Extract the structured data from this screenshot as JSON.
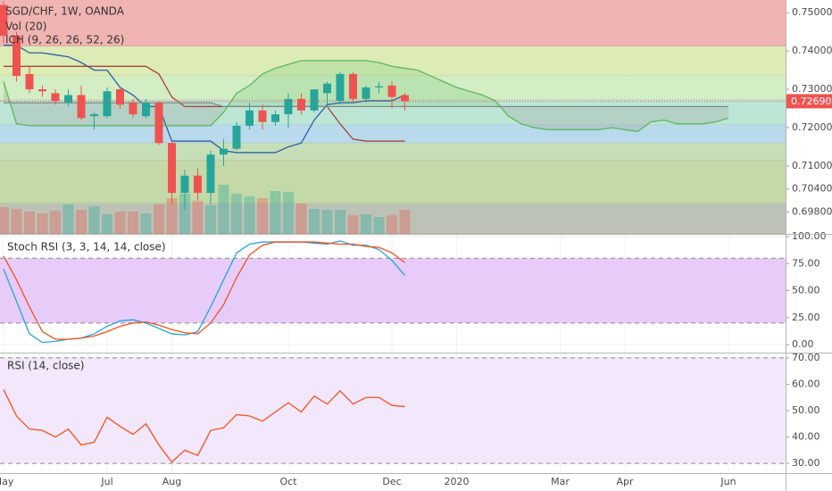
{
  "time_axis": {
    "labels": [
      "May",
      null,
      null,
      null,
      null,
      null,
      null,
      null,
      "Jul",
      null,
      null,
      null,
      null,
      "Aug",
      null,
      null,
      null,
      null,
      null,
      null,
      null,
      null,
      "Oct",
      null,
      null,
      null,
      null,
      null,
      null,
      null,
      "Dec",
      null,
      null,
      null,
      null,
      "2020",
      null,
      null,
      null,
      null,
      null,
      null,
      null,
      "Mar",
      null,
      null,
      null,
      null,
      "Apr",
      null,
      null,
      null,
      null,
      null,
      null,
      null,
      "Jun",
      null,
      null,
      null,
      null
    ]
  },
  "chart_data": [
    {
      "type": "candlestick",
      "title": "SGD/CHF, 1W, OANDA",
      "up_color": "#26a69a",
      "down_color": "#ef5350",
      "open": [
        0.752,
        0.744,
        0.734,
        0.73,
        0.729,
        0.7265,
        0.7285,
        0.723,
        0.723,
        0.73,
        0.7265,
        0.723,
        0.7265,
        0.716,
        0.703,
        0.7075,
        0.703,
        0.713,
        0.7145,
        0.7205,
        0.7245,
        0.7215,
        0.7235,
        0.7275,
        0.7245,
        0.729,
        0.727,
        0.734,
        0.7275,
        0.7305,
        0.731,
        0.7285
      ],
      "high": [
        0.753,
        0.745,
        0.736,
        0.731,
        0.73,
        0.73,
        0.731,
        0.724,
        0.7305,
        0.7305,
        0.7275,
        0.7275,
        0.727,
        0.7165,
        0.709,
        0.7095,
        0.714,
        0.717,
        0.7215,
        0.7265,
        0.726,
        0.7245,
        0.729,
        0.729,
        0.73,
        0.732,
        0.7345,
        0.7345,
        0.731,
        0.732,
        0.732,
        0.729
      ],
      "low": [
        0.742,
        0.732,
        0.729,
        0.728,
        0.726,
        0.7255,
        0.722,
        0.7195,
        0.7225,
        0.725,
        0.7225,
        0.7225,
        0.7155,
        0.7,
        0.6985,
        0.701,
        0.7,
        0.71,
        0.714,
        0.7195,
        0.7195,
        0.7205,
        0.72,
        0.7235,
        0.724,
        0.726,
        0.726,
        0.7265,
        0.7265,
        0.729,
        0.725,
        0.7245
      ],
      "close": [
        0.744,
        0.7335,
        0.73,
        0.7295,
        0.727,
        0.7285,
        0.7225,
        0.7235,
        0.7295,
        0.726,
        0.7235,
        0.7265,
        0.716,
        0.703,
        0.7075,
        0.703,
        0.713,
        0.7145,
        0.7205,
        0.7245,
        0.7215,
        0.7235,
        0.7275,
        0.7245,
        0.73,
        0.7315,
        0.734,
        0.7275,
        0.7305,
        0.7308,
        0.728,
        0.7269
      ],
      "volume": {
        "label": "Vol (20)",
        "values": [
          30,
          28,
          25,
          23,
          26,
          33,
          27,
          31,
          22,
          25,
          25,
          23,
          33,
          40,
          45,
          37,
          32,
          55,
          45,
          42,
          40,
          48,
          47,
          34,
          28,
          27,
          27,
          21,
          22,
          19,
          21,
          27
        ]
      },
      "ichimoku": {
        "label": "ICH (9, 26, 26, 52, 26)",
        "series": [
          {
            "color": "#2f5ea8",
            "values": [
              0.7415,
              0.7415,
              0.7395,
              0.7395,
              0.739,
              0.7385,
              0.737,
              0.735,
              0.735,
              0.7305,
              0.7285,
              0.7255,
              0.7255,
              0.7165,
              0.7165,
              0.7165,
              0.7165,
              0.714,
              0.7135,
              0.7135,
              0.7135,
              0.7135,
              0.715,
              0.716,
              0.722,
              0.726,
              0.7265,
              0.7265,
              0.727,
              0.727,
              0.727,
              0.7285
            ]
          },
          {
            "color": "#a2473d",
            "values": [
              0.736,
              0.736,
              0.736,
              0.736,
              0.736,
              0.736,
              0.736,
              0.736,
              0.736,
              0.736,
              0.736,
              0.736,
              0.734,
              0.728,
              0.7255,
              0.7255,
              0.7255,
              0.7255,
              0.7255,
              0.7255,
              0.7255,
              0.7255,
              0.7255,
              0.7255,
              0.7255,
              0.7255,
              0.721,
              0.717,
              0.7165,
              0.7165,
              0.7165,
              0.7165
            ]
          },
          {
            "color": "#5cb85c",
            "values": [
              0.732,
              0.721,
              0.7205,
              0.7205,
              0.7205,
              0.7205,
              0.7205,
              0.7205,
              0.7205,
              0.7205,
              0.7205,
              0.7205,
              0.7205,
              0.7205,
              0.7205,
              0.7205,
              0.7205,
              0.724,
              0.729,
              0.731,
              0.734,
              0.7355,
              0.7365,
              0.7375,
              0.7375,
              0.7375,
              0.7375,
              0.7375,
              0.7375,
              0.737,
              0.736,
              0.7355,
              0.735,
              0.7335,
              0.732,
              0.7305,
              0.7295,
              0.7285,
              0.727,
              0.723,
              0.721,
              0.72,
              0.7195,
              0.7195,
              0.7195,
              0.7195,
              0.7195,
              0.72,
              0.7195,
              0.719,
              0.7215,
              0.722,
              0.721,
              0.721,
              0.721,
              0.7215,
              0.7225
            ]
          },
          {
            "color": "#7f8c86",
            "values": [
              0.7265,
              0.7265,
              0.7265,
              0.7265,
              0.7265,
              0.7265,
              0.7265,
              0.7265,
              0.7265,
              0.7265,
              0.7265,
              0.7265,
              0.7265,
              0.7265,
              0.7265,
              0.7265,
              0.7265,
              0.7255,
              0.7255,
              0.7255,
              0.7255,
              0.7255,
              0.7255,
              0.7255,
              0.7255,
              0.7255,
              0.7255,
              0.7255,
              0.7255,
              0.7255,
              0.7255,
              0.7255,
              0.7255,
              0.7255,
              0.7255,
              0.7255,
              0.7255,
              0.7255,
              0.7255,
              0.7255,
              0.7255,
              0.7255,
              0.7255,
              0.7255,
              0.7255,
              0.7255,
              0.7255,
              0.7255,
              0.7255,
              0.7255,
              0.7255,
              0.7255,
              0.7255,
              0.7255,
              0.7255,
              0.7255,
              0.7255
            ]
          }
        ]
      },
      "zones": [
        {
          "from": 0.7533,
          "to": 0.7412,
          "color": "#f0b4b2"
        },
        {
          "from": 0.7412,
          "to": 0.7335,
          "color": "#dcecb4"
        },
        {
          "from": 0.7335,
          "to": 0.7272,
          "color": "#d3edc4"
        },
        {
          "from": 0.7272,
          "to": 0.7207,
          "color": "#bde5d6"
        },
        {
          "from": 0.7207,
          "to": 0.716,
          "color": "#b8daec"
        },
        {
          "from": 0.716,
          "to": 0.7114,
          "color": "#c6dfb9"
        },
        {
          "from": 0.7114,
          "to": 0.7002,
          "color": "#c4d8a8"
        },
        {
          "from": 0.7002,
          "to": 0.6923,
          "color": "#bcc3b6"
        }
      ],
      "last_price": 0.7269,
      "last_price_label": "0.72690",
      "last_price_color": "#ef5350",
      "ylim": [
        0.6923,
        0.7533
      ],
      "yticks": [
        {
          "value": 0.75,
          "label": "0.75000"
        },
        {
          "value": 0.74,
          "label": "0.74000"
        },
        {
          "value": 0.73,
          "label": "0.73000"
        },
        {
          "value": 0.72,
          "label": "0.72000"
        },
        {
          "value": 0.71,
          "label": "0.71000"
        },
        {
          "value": 0.704,
          "label": "0.70400"
        },
        {
          "value": 0.698,
          "label": "0.69800"
        }
      ],
      "grid": false
    },
    {
      "type": "line",
      "title": "Stoch RSI (3, 3, 14, 14, close)",
      "ylim": [
        -7.4,
        102.5
      ],
      "yticks": [
        {
          "value": 100,
          "label": "100.00"
        },
        {
          "value": 75,
          "label": "75.00"
        },
        {
          "value": 50,
          "label": "50.00"
        },
        {
          "value": 25,
          "label": "25.00"
        },
        {
          "value": 0,
          "label": "0.00"
        }
      ],
      "band": [
        20,
        80
      ],
      "band_color": "#e7ccfa",
      "series": [
        {
          "color": "#26a6d9",
          "values": [
            70,
            40,
            10,
            2,
            3,
            5,
            6,
            10,
            17,
            22,
            23,
            20,
            15,
            10,
            9,
            12,
            35,
            60,
            85,
            93,
            95,
            95,
            95,
            95,
            94,
            93,
            96,
            92,
            92,
            88,
            78,
            64
          ]
        },
        {
          "color": "#f4511e",
          "values": [
            82,
            60,
            35,
            12,
            5,
            5,
            6,
            8,
            12,
            17,
            20,
            21,
            18,
            14,
            11,
            10,
            20,
            37,
            62,
            83,
            92,
            95,
            95,
            95,
            95,
            94,
            93,
            93,
            91,
            90,
            85,
            76
          ]
        }
      ],
      "grid": true
    },
    {
      "type": "line",
      "title": "RSI (14, close)",
      "ylim": [
        26.3,
        72.0
      ],
      "yticks": [
        {
          "value": 70,
          "label": "70.00"
        },
        {
          "value": 60,
          "label": "60.00"
        },
        {
          "value": 50,
          "label": "50.00"
        },
        {
          "value": 40,
          "label": "40.00"
        },
        {
          "value": 30,
          "label": "30.00"
        }
      ],
      "band": [
        30,
        70
      ],
      "band_color": "#f3e8fb",
      "series": [
        {
          "color": "#f4511e",
          "values": [
            58,
            48,
            43,
            42.5,
            40,
            43,
            37,
            38,
            47.5,
            44,
            41,
            45,
            37,
            30.5,
            35,
            33,
            42.5,
            43.5,
            48.5,
            48,
            46,
            49.5,
            53,
            49.5,
            55.5,
            52.5,
            57.5,
            52.5,
            55,
            55,
            52,
            51.5
          ]
        }
      ],
      "grid": true
    }
  ]
}
